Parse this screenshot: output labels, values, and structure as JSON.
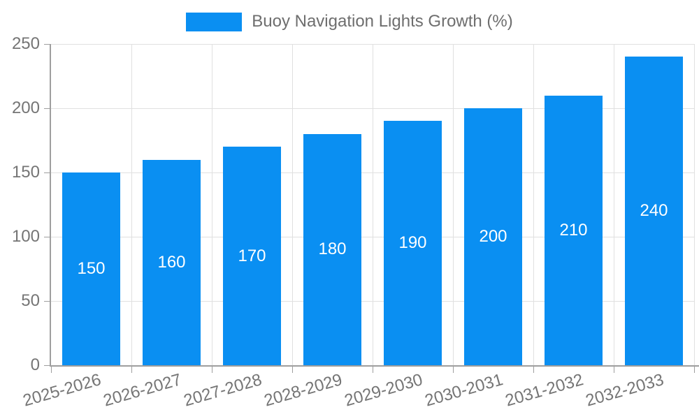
{
  "chart_data": {
    "type": "bar",
    "legend_label": "Buoy Navigation Lights Growth (%)",
    "categories": [
      "2025-2026",
      "2026-2027",
      "2027-2028",
      "2028-2029",
      "2029-2030",
      "2030-2031",
      "2031-2032",
      "2032-2033"
    ],
    "values": [
      150,
      160,
      170,
      180,
      190,
      200,
      210,
      240
    ],
    "xlabel": "",
    "ylabel": "",
    "ylim": [
      0,
      250
    ],
    "yticks": [
      0,
      50,
      100,
      150,
      200,
      250
    ],
    "grid": "on",
    "legend_position": "top-center",
    "value_labels": "inside-center",
    "colors": {
      "bar": "#0a8ff2",
      "value_label": "#ffffff",
      "axis_label": "#757575",
      "legend_text": "#6e6e6e",
      "gridline": "#e0e0e0",
      "axis_line": "#9e9e9e"
    }
  }
}
